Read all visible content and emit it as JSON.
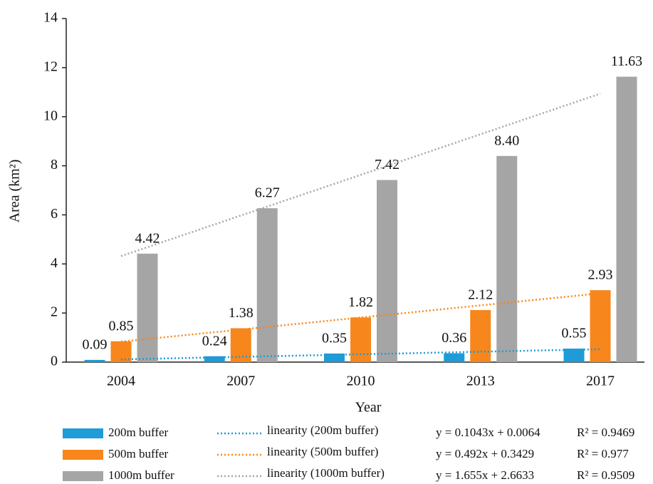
{
  "chart_data": {
    "type": "bar",
    "x_label": "Year",
    "y_label": "Area (km²)",
    "categories": [
      "2004",
      "2007",
      "2010",
      "2013",
      "2017"
    ],
    "ylim": [
      0,
      14
    ],
    "yticks": [
      0,
      2,
      4,
      6,
      8,
      10,
      12,
      14
    ],
    "series": [
      {
        "name": "200m buffer",
        "color": "#1f9bd7",
        "values": [
          0.09,
          0.24,
          0.35,
          0.36,
          0.55
        ],
        "trend": {
          "name": "linearity (200m buffer)",
          "slope": 0.1043,
          "intercept": 0.0064,
          "equation": "y = 0.1043x + 0.0064",
          "r2": "R² = 0.9469"
        }
      },
      {
        "name": "500m buffer",
        "color": "#f7861c",
        "values": [
          0.85,
          1.38,
          1.82,
          2.12,
          2.93
        ],
        "trend": {
          "name": "linearity (500m buffer)",
          "slope": 0.492,
          "intercept": 0.3429,
          "equation": "y = 0.492x + 0.3429",
          "r2": "R² = 0.977"
        }
      },
      {
        "name": "1000m buffer",
        "color": "#a5a5a5",
        "values": [
          4.42,
          6.27,
          7.42,
          8.4,
          11.63
        ],
        "value_labels": [
          "4.42",
          "6.27",
          "7.42",
          "8.40",
          "11.63"
        ],
        "trend": {
          "name": "linearity (1000m buffer)",
          "slope": 1.655,
          "intercept": 2.6633,
          "equation": "y = 1.655x + 2.6633",
          "r2": "R² = 0.9509"
        }
      }
    ]
  }
}
